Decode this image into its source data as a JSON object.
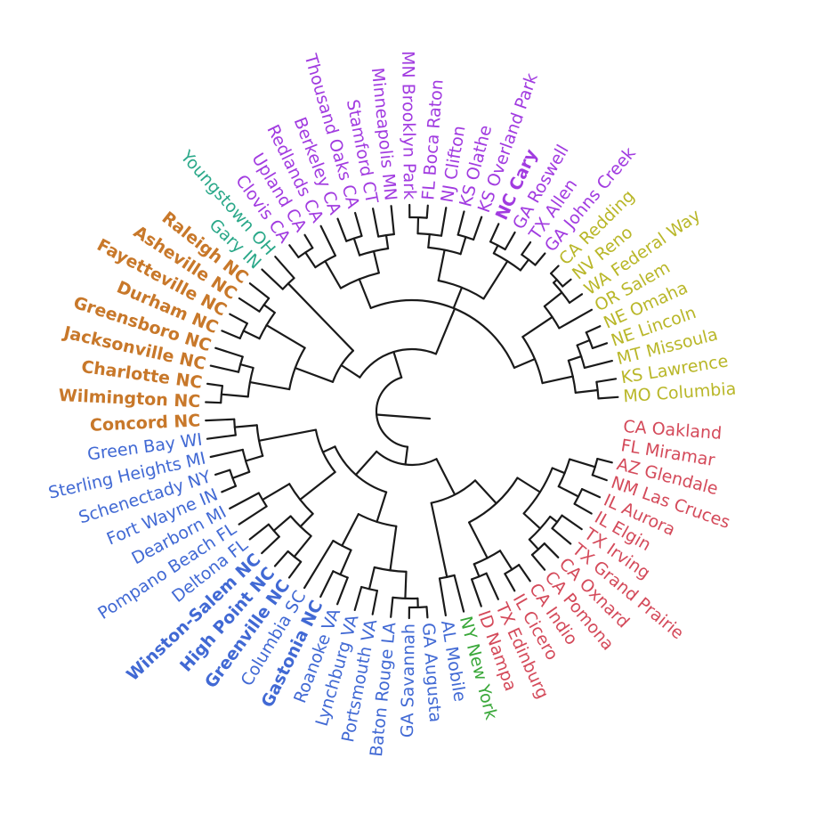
{
  "cluster_colors": {
    "teal": "#2aa889",
    "orange": "#c8782a",
    "purple": "#a13be0",
    "olive": "#b9b729",
    "red": "#d44a5a",
    "blue": "#4169d4",
    "green": "#3aa83a"
  },
  "leaves": [
    {
      "label": "MO Columbia",
      "color": "olive",
      "bold": false
    },
    {
      "label": "KS Lawrence",
      "color": "olive",
      "bold": false
    },
    {
      "label": "MT Missoula",
      "color": "olive",
      "bold": false
    },
    {
      "label": "NE Lincoln",
      "color": "olive",
      "bold": false
    },
    {
      "label": "NE Omaha",
      "color": "olive",
      "bold": false
    },
    {
      "label": "OR Salem",
      "color": "olive",
      "bold": false
    },
    {
      "label": "WA Federal Way",
      "color": "olive",
      "bold": false
    },
    {
      "label": "NV Reno",
      "color": "olive",
      "bold": false
    },
    {
      "label": "CA Redding",
      "color": "olive",
      "bold": false
    },
    {
      "label": "GA Johns Creek",
      "color": "purple",
      "bold": false
    },
    {
      "label": "TX Allen",
      "color": "purple",
      "bold": false
    },
    {
      "label": "GA Roswell",
      "color": "purple",
      "bold": false
    },
    {
      "label": "NC Cary",
      "color": "purple",
      "bold": true
    },
    {
      "label": "KS Overland Park",
      "color": "purple",
      "bold": false
    },
    {
      "label": "KS Olathe",
      "color": "purple",
      "bold": false
    },
    {
      "label": "NJ Clifton",
      "color": "purple",
      "bold": false
    },
    {
      "label": "FL Boca Raton",
      "color": "purple",
      "bold": false
    },
    {
      "label": "MN Brooklyn Park",
      "color": "purple",
      "bold": false
    },
    {
      "label": "Minneapolis MN",
      "color": "purple",
      "bold": false
    },
    {
      "label": "Stamford CT",
      "color": "purple",
      "bold": false
    },
    {
      "label": "Thousand Oaks CA",
      "color": "purple",
      "bold": false
    },
    {
      "label": "Berkeley CA",
      "color": "purple",
      "bold": false
    },
    {
      "label": "Redlands CA",
      "color": "purple",
      "bold": false
    },
    {
      "label": "Upland CA",
      "color": "purple",
      "bold": false
    },
    {
      "label": "Clovis CA",
      "color": "purple",
      "bold": false
    },
    {
      "label": "Youngstown OH",
      "color": "teal",
      "bold": false
    },
    {
      "label": "Gary IN",
      "color": "teal",
      "bold": false
    },
    {
      "label": "Raleigh NC",
      "color": "orange",
      "bold": true
    },
    {
      "label": "Asheville NC",
      "color": "orange",
      "bold": true
    },
    {
      "label": "Fayetteville NC",
      "color": "orange",
      "bold": true
    },
    {
      "label": "Durham NC",
      "color": "orange",
      "bold": true
    },
    {
      "label": "Greensboro NC",
      "color": "orange",
      "bold": true
    },
    {
      "label": "Jacksonville NC",
      "color": "orange",
      "bold": true
    },
    {
      "label": "Charlotte NC",
      "color": "orange",
      "bold": true
    },
    {
      "label": "Wilmington NC",
      "color": "orange",
      "bold": true
    },
    {
      "label": "Concord NC",
      "color": "orange",
      "bold": true
    },
    {
      "label": "Green Bay WI",
      "color": "blue",
      "bold": false
    },
    {
      "label": "Sterling Heights MI",
      "color": "blue",
      "bold": false
    },
    {
      "label": "Schenectady NY",
      "color": "blue",
      "bold": false
    },
    {
      "label": "Fort Wayne IN",
      "color": "blue",
      "bold": false
    },
    {
      "label": "Dearborn MI",
      "color": "blue",
      "bold": false
    },
    {
      "label": "Pompano Beach FL",
      "color": "blue",
      "bold": false
    },
    {
      "label": "Deltona FL",
      "color": "blue",
      "bold": false
    },
    {
      "label": "Winston-Salem NC",
      "color": "blue",
      "bold": true
    },
    {
      "label": "High Point NC",
      "color": "blue",
      "bold": true
    },
    {
      "label": "Greenville NC",
      "color": "blue",
      "bold": true
    },
    {
      "label": "Columbia SC",
      "color": "blue",
      "bold": false
    },
    {
      "label": "Gastonia NC",
      "color": "blue",
      "bold": true
    },
    {
      "label": "Roanoke VA",
      "color": "blue",
      "bold": false
    },
    {
      "label": "Lynchburg VA",
      "color": "blue",
      "bold": false
    },
    {
      "label": "Portsmouth VA",
      "color": "blue",
      "bold": false
    },
    {
      "label": "Baton Rouge LA",
      "color": "blue",
      "bold": false
    },
    {
      "label": "GA Savannah",
      "color": "blue",
      "bold": false
    },
    {
      "label": "GA Augusta",
      "color": "blue",
      "bold": false
    },
    {
      "label": "AL Mobile",
      "color": "blue",
      "bold": false
    },
    {
      "label": "NY New York",
      "color": "green",
      "bold": false
    },
    {
      "label": "ID Nampa",
      "color": "red",
      "bold": false
    },
    {
      "label": "TX Edinburg",
      "color": "red",
      "bold": false
    },
    {
      "label": "IL Cicero",
      "color": "red",
      "bold": false
    },
    {
      "label": "CA Indio",
      "color": "red",
      "bold": false
    },
    {
      "label": "CA Pomona",
      "color": "red",
      "bold": false
    },
    {
      "label": "CA Oxnard",
      "color": "red",
      "bold": false
    },
    {
      "label": "TX Grand Prairie",
      "color": "red",
      "bold": false
    },
    {
      "label": "TX Irving",
      "color": "red",
      "bold": false
    },
    {
      "label": "IL Elgin",
      "color": "red",
      "bold": false
    },
    {
      "label": "IL Aurora",
      "color": "red",
      "bold": false
    },
    {
      "label": "NM Las Cruces",
      "color": "red",
      "bold": false
    },
    {
      "label": "AZ Glendale",
      "color": "red",
      "bold": false
    },
    {
      "label": "FL Miramar",
      "color": "red",
      "bold": false
    },
    {
      "label": "CA Oakland",
      "color": "red",
      "bold": false
    }
  ]
}
